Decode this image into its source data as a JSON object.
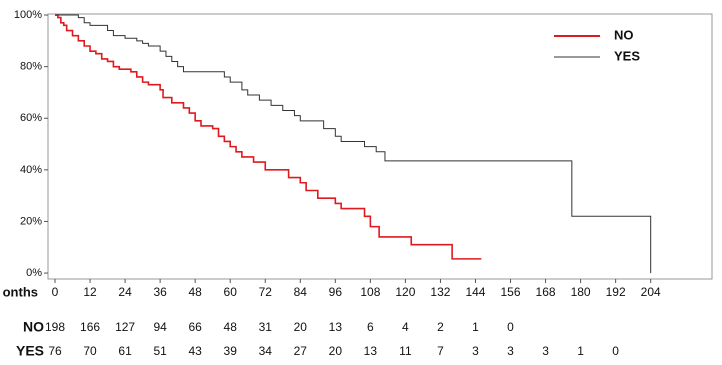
{
  "chart_data": {
    "type": "step",
    "x_label": "onths",
    "xlim": [
      -2.4,
      225
    ],
    "ylim": [
      -2.3,
      100.4
    ],
    "xticks": [
      0,
      12,
      24,
      36,
      48,
      60,
      72,
      84,
      96,
      108,
      120,
      132,
      144,
      156,
      168,
      180,
      192,
      204
    ],
    "yticks": [
      {
        "value": 0,
        "label": "0%"
      },
      {
        "value": 20,
        "label": "20%"
      },
      {
        "value": 40,
        "label": "40%"
      },
      {
        "value": 60,
        "label": "60%"
      },
      {
        "value": 80,
        "label": "80%"
      },
      {
        "value": 100,
        "label": "100%"
      }
    ],
    "legend": "upper right",
    "series": [
      {
        "name": "NO",
        "color": "#e0191f",
        "x": [
          0,
          1,
          2,
          3,
          4,
          6,
          8,
          10,
          12,
          14,
          16,
          18,
          20,
          22,
          26,
          28,
          30,
          32,
          36,
          37,
          40,
          44,
          46,
          48,
          50,
          54,
          56,
          58,
          60,
          62,
          64,
          68,
          72,
          80,
          84,
          86,
          90,
          96,
          98,
          106,
          108,
          111,
          122,
          136,
          146
        ],
        "values": [
          100,
          99,
          97,
          96,
          94,
          92,
          90,
          88,
          86,
          85,
          83,
          82,
          80,
          79,
          78,
          76,
          74,
          73,
          71,
          68,
          66,
          64,
          62,
          59,
          57,
          56,
          53,
          51,
          49,
          47,
          45,
          43,
          40,
          37,
          35,
          32,
          29,
          27,
          25,
          22,
          18,
          14,
          11,
          5.5,
          5.5
        ]
      },
      {
        "name": "YES",
        "color": "#333333",
        "x": [
          0,
          8,
          10,
          12,
          18,
          20,
          24,
          28,
          30,
          32,
          36,
          38,
          40,
          42,
          44,
          58,
          60,
          64,
          66,
          70,
          74,
          78,
          82,
          84,
          92,
          96,
          98,
          106,
          110,
          113,
          177,
          204,
          204
        ],
        "values": [
          100,
          99,
          97,
          96,
          94,
          92,
          91,
          90,
          89,
          88,
          86,
          84,
          82,
          80,
          78,
          76,
          74,
          71,
          69,
          67,
          65,
          63,
          61,
          59,
          56,
          53,
          51,
          49,
          47,
          43.5,
          22,
          22,
          0
        ]
      }
    ],
    "risk_table": [
      {
        "label": "NO",
        "counts": [
          198,
          166,
          127,
          94,
          66,
          48,
          31,
          20,
          13,
          6,
          4,
          2,
          1,
          0
        ]
      },
      {
        "label": "YES",
        "counts": [
          76,
          70,
          61,
          51,
          43,
          39,
          34,
          27,
          20,
          13,
          11,
          7,
          3,
          3,
          3,
          1,
          0
        ]
      }
    ]
  }
}
